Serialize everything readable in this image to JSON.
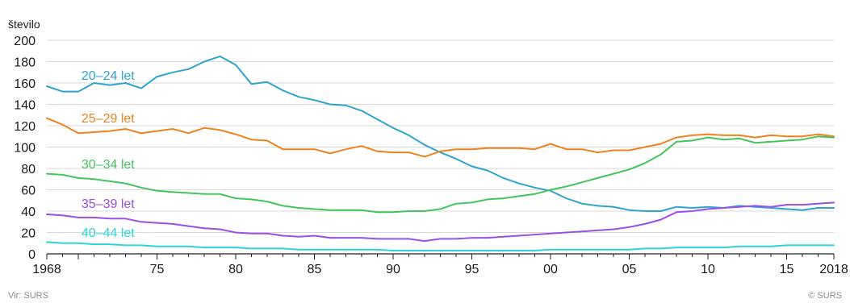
{
  "chart_data": {
    "type": "line",
    "ylabel": "število",
    "ylim": [
      0,
      200
    ],
    "y_ticks": [
      "0",
      "20",
      "40",
      "60",
      "80",
      "100",
      "120",
      "140",
      "160",
      "180",
      "200"
    ],
    "x_range": [
      1968,
      2018
    ],
    "x_ticks": [
      {
        "year": 1968,
        "label": "1968"
      },
      {
        "year": 1975,
        "label": "75"
      },
      {
        "year": 1980,
        "label": "80"
      },
      {
        "year": 1985,
        "label": "85"
      },
      {
        "year": 1990,
        "label": "90"
      },
      {
        "year": 1995,
        "label": "95"
      },
      {
        "year": 2000,
        "label": "00"
      },
      {
        "year": 2005,
        "label": "05"
      },
      {
        "year": 2010,
        "label": "10"
      },
      {
        "year": 2015,
        "label": "15"
      },
      {
        "year": 2018,
        "label": "2018"
      }
    ],
    "grid": "horizontal",
    "x": [
      1968,
      1969,
      1970,
      1971,
      1972,
      1973,
      1974,
      1975,
      1976,
      1977,
      1978,
      1979,
      1980,
      1981,
      1982,
      1983,
      1984,
      1985,
      1986,
      1987,
      1988,
      1989,
      1990,
      1991,
      1992,
      1993,
      1994,
      1995,
      1996,
      1997,
      1998,
      1999,
      2000,
      2001,
      2002,
      2003,
      2004,
      2005,
      2006,
      2007,
      2008,
      2009,
      2010,
      2011,
      2012,
      2013,
      2014,
      2015,
      2016,
      2017,
      2018
    ],
    "series": [
      {
        "name": "20–24 let",
        "color": "#2fa4cf",
        "values": [
          157,
          152,
          152,
          160,
          158,
          160,
          155,
          166,
          170,
          173,
          180,
          185,
          177,
          159,
          161,
          153,
          147,
          144,
          140,
          139,
          134,
          126,
          118,
          111,
          102,
          95,
          89,
          82,
          78,
          71,
          66,
          62,
          59,
          52,
          47,
          45,
          44,
          41,
          40,
          40,
          44,
          43,
          44,
          43,
          45,
          44,
          43,
          42,
          41,
          43,
          43
        ]
      },
      {
        "name": "25–29 let",
        "color": "#f0821e",
        "values": [
          127,
          121,
          113,
          114,
          115,
          117,
          113,
          115,
          117,
          113,
          118,
          116,
          112,
          107,
          106,
          98,
          98,
          98,
          94,
          98,
          101,
          96,
          95,
          95,
          91,
          96,
          98,
          98,
          99,
          99,
          99,
          98,
          103,
          98,
          98,
          95,
          97,
          97,
          100,
          103,
          109,
          111,
          112,
          111,
          111,
          109,
          111,
          110,
          110,
          112,
          110
        ]
      },
      {
        "name": "30–34 let",
        "color": "#45c45e",
        "values": [
          75,
          74,
          71,
          70,
          68,
          66,
          62,
          59,
          58,
          57,
          56,
          56,
          52,
          51,
          49,
          45,
          43,
          42,
          41,
          41,
          41,
          39,
          39,
          40,
          40,
          42,
          47,
          48,
          51,
          52,
          54,
          56,
          60,
          63,
          67,
          71,
          75,
          79,
          85,
          93,
          105,
          106,
          109,
          107,
          108,
          104,
          105,
          106,
          107,
          110,
          109
        ]
      },
      {
        "name": "35–39 let",
        "color": "#9a4fe8",
        "values": [
          37,
          36,
          34,
          34,
          33,
          33,
          30,
          29,
          28,
          26,
          24,
          23,
          20,
          19,
          19,
          17,
          16,
          17,
          15,
          15,
          15,
          14,
          14,
          14,
          12,
          14,
          14,
          15,
          15,
          16,
          17,
          18,
          19,
          20,
          21,
          22,
          23,
          25,
          28,
          32,
          39,
          40,
          42,
          43,
          44,
          45,
          44,
          46,
          46,
          47,
          48
        ]
      },
      {
        "name": "40–44 let",
        "color": "#2dd4d8",
        "values": [
          11,
          10,
          10,
          9,
          9,
          8,
          8,
          7,
          7,
          7,
          6,
          6,
          6,
          5,
          5,
          5,
          4,
          4,
          4,
          4,
          4,
          4,
          3,
          3,
          3,
          3,
          3,
          3,
          3,
          3,
          3,
          3,
          4,
          4,
          4,
          4,
          4,
          4,
          5,
          5,
          6,
          6,
          6,
          6,
          7,
          7,
          7,
          8,
          8,
          8,
          8
        ]
      }
    ]
  },
  "footer": {
    "source": "Vir: SURS",
    "copyright": "© SURS"
  }
}
